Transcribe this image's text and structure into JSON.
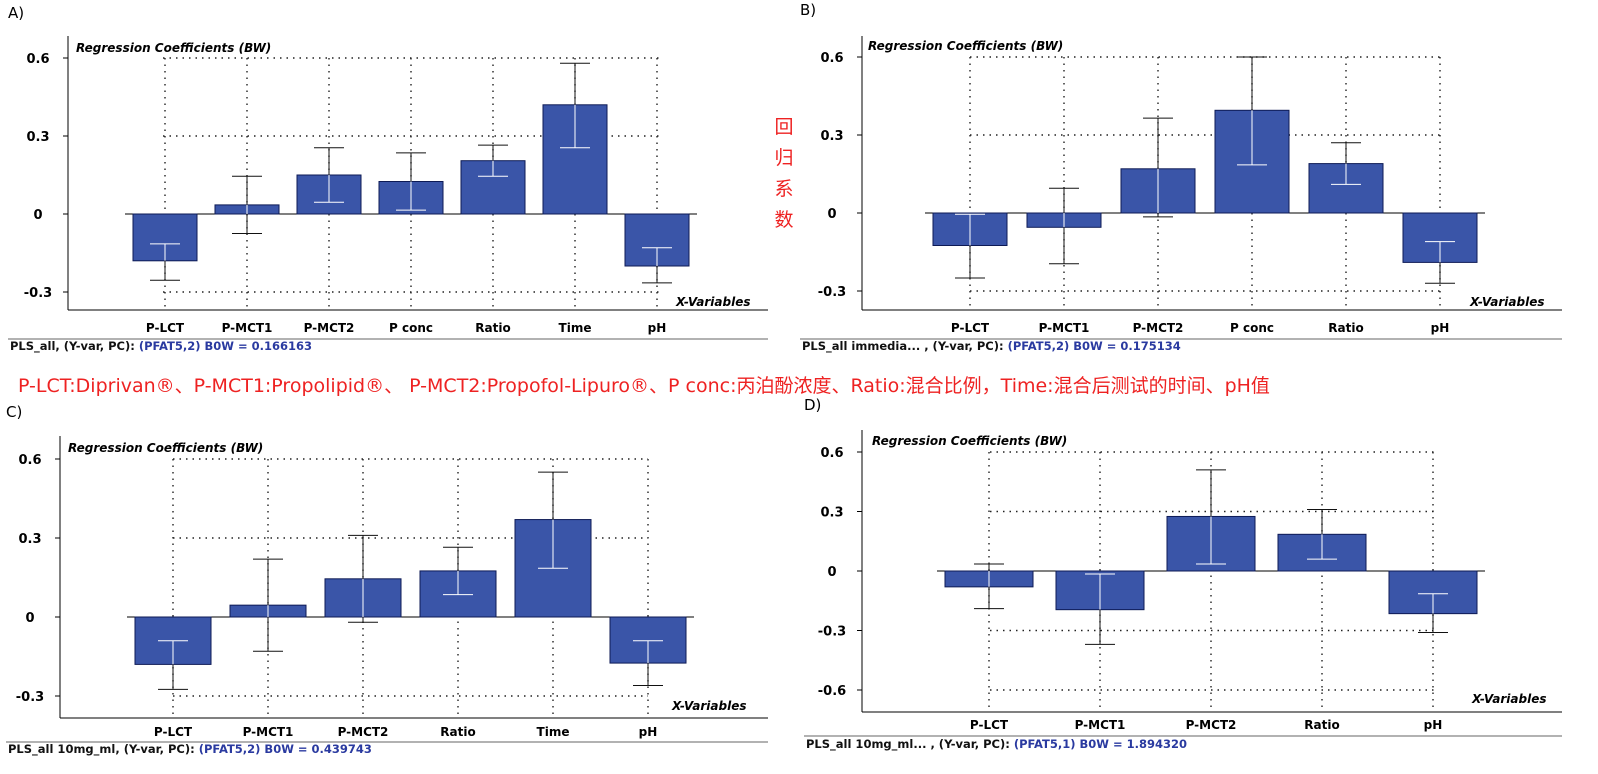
{
  "caption": "P-LCT:Diprivan®、P-MCT1:Propolipid®、 P-MCT2:Propofol-Lipuro®、P conc:丙泊酚浓度、Ratio:混合比例，Time:混合后测试的时间、pH值",
  "side_label": [
    "回",
    "归",
    "系",
    "数"
  ],
  "colors": {
    "bar_fill": "#3a55a8",
    "bar_stroke": "#0d1a55",
    "caption": "#ee2222",
    "footer_value": "#2a3aa0"
  },
  "chart_data": [
    {
      "panel_label": "A)",
      "type": "bar",
      "title": "Regression Coefficients (BW)",
      "xlabel": "X-Variables",
      "categories": [
        "P-LCT",
        "P-MCT1",
        "P-MCT2",
        "P conc",
        "Ratio",
        "Time",
        "pH"
      ],
      "values": [
        -0.18,
        0.035,
        0.15,
        0.125,
        0.205,
        0.42,
        -0.2
      ],
      "error_low": [
        -0.255,
        -0.075,
        0.045,
        0.015,
        0.145,
        0.255,
        -0.265
      ],
      "error_high": [
        -0.115,
        0.145,
        0.255,
        0.235,
        0.265,
        0.58,
        -0.13
      ],
      "y_ticks": [
        "0.6",
        "0.3",
        "0",
        "-0.3"
      ],
      "ylim": [
        -0.3,
        0.6
      ],
      "footer_prefix": "PLS_all, (Y-var, PC): ",
      "footer_value": "(PFAT5,2) B0W = 0.166163"
    },
    {
      "panel_label": "B)",
      "type": "bar",
      "title": "Regression Coefficients (BW)",
      "xlabel": "X-Variables",
      "categories": [
        "P-LCT",
        "P-MCT1",
        "P-MCT2",
        "P conc",
        "Ratio",
        "pH"
      ],
      "values": [
        -0.125,
        -0.055,
        0.17,
        0.395,
        0.19,
        -0.19
      ],
      "error_low": [
        -0.25,
        -0.195,
        -0.015,
        0.185,
        0.11,
        -0.27
      ],
      "error_high": [
        -0.005,
        0.095,
        0.365,
        0.6,
        0.27,
        -0.11
      ],
      "y_ticks": [
        "0.6",
        "0.3",
        "0",
        "-0.3"
      ],
      "ylim": [
        -0.3,
        0.6
      ],
      "footer_prefix": "PLS_all immedia... , (Y-var, PC): ",
      "footer_value": "(PFAT5,2) B0W = 0.175134"
    },
    {
      "panel_label": "C)",
      "type": "bar",
      "title": "Regression Coefficients (BW)",
      "xlabel": "X-Variables",
      "categories": [
        "P-LCT",
        "P-MCT1",
        "P-MCT2",
        "Ratio",
        "Time",
        "pH"
      ],
      "values": [
        -0.18,
        0.045,
        0.145,
        0.175,
        0.37,
        -0.175
      ],
      "error_low": [
        -0.275,
        -0.13,
        -0.02,
        0.085,
        0.185,
        -0.26
      ],
      "error_high": [
        -0.09,
        0.22,
        0.31,
        0.265,
        0.55,
        -0.09
      ],
      "y_ticks": [
        "0.6",
        "0.3",
        "0",
        "-0.3"
      ],
      "ylim": [
        -0.3,
        0.6
      ],
      "footer_prefix": "PLS_all 10mg_ml, (Y-var, PC): ",
      "footer_value": "(PFAT5,2) B0W = 0.439743"
    },
    {
      "panel_label": "D)",
      "type": "bar",
      "title": "Regression Coefficients (BW)",
      "xlabel": "X-Variables",
      "categories": [
        "P-LCT",
        "P-MCT1",
        "P-MCT2",
        "Ratio",
        "pH"
      ],
      "values": [
        -0.08,
        -0.195,
        0.275,
        0.185,
        -0.215
      ],
      "error_low": [
        -0.19,
        -0.37,
        0.035,
        0.06,
        -0.31
      ],
      "error_high": [
        0.035,
        -0.015,
        0.51,
        0.31,
        -0.115
      ],
      "y_ticks": [
        "0.6",
        "0.3",
        "0",
        "-0.3",
        "-0.6"
      ],
      "ylim": [
        -0.6,
        0.6
      ],
      "footer_prefix": "PLS_all 10mg_ml... , (Y-var, PC): ",
      "footer_value": "(PFAT5,1) B0W = 1.894320"
    }
  ]
}
